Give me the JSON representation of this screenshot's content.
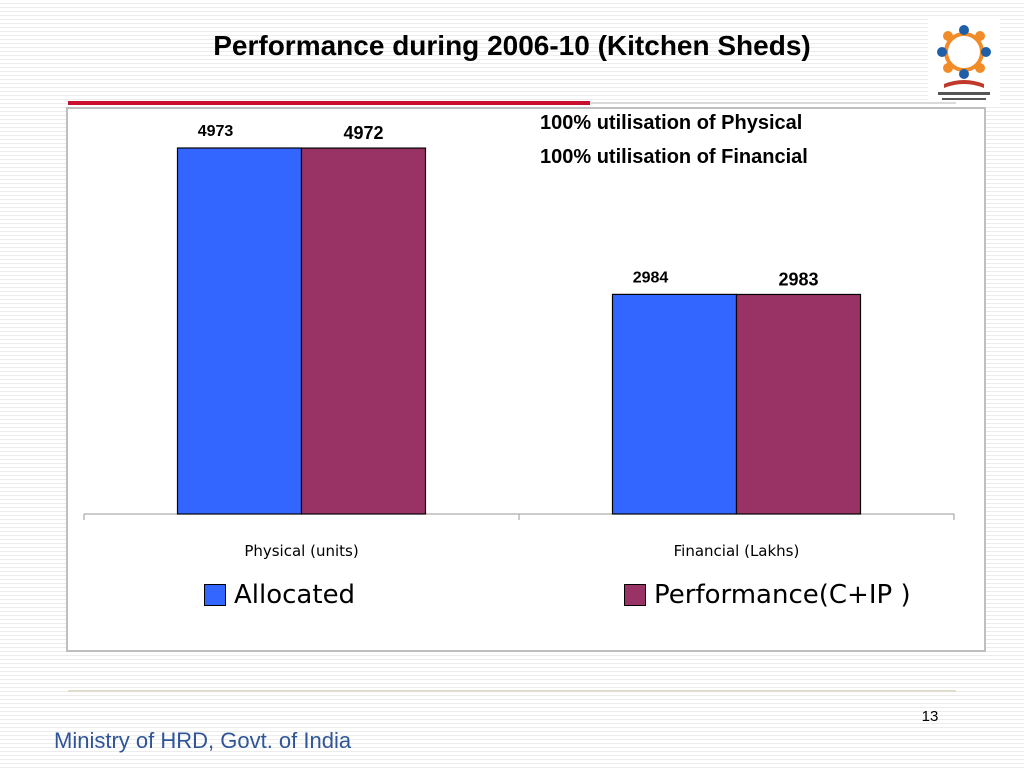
{
  "slide": {
    "title": "Performance during 2006-10 (Kitchen Sheds)",
    "notes": [
      "100% utilisation of Physical",
      "100% utilisation of Financial"
    ],
    "page_number": "13",
    "footer": "Ministry of HRD, Govt. of India",
    "logo_icon": "mid-day-meal-scheme-logo"
  },
  "chart_data": {
    "type": "bar",
    "title": "",
    "xlabel": "",
    "ylabel": "",
    "categories": [
      "Physical (units)",
      "Financial (Lakhs)"
    ],
    "series": [
      {
        "name": "Allocated",
        "values": [
          4973,
          2984
        ],
        "value_labels": [
          "4973",
          "2984"
        ],
        "color": "#3366ff"
      },
      {
        "name": "Performance(C+IP )",
        "values": [
          4972,
          2983
        ],
        "value_labels": [
          "4972",
          "2983"
        ],
        "color": "#993366"
      }
    ],
    "ylim": [
      0,
      5500
    ],
    "grid": false,
    "legend_position": "bottom"
  }
}
